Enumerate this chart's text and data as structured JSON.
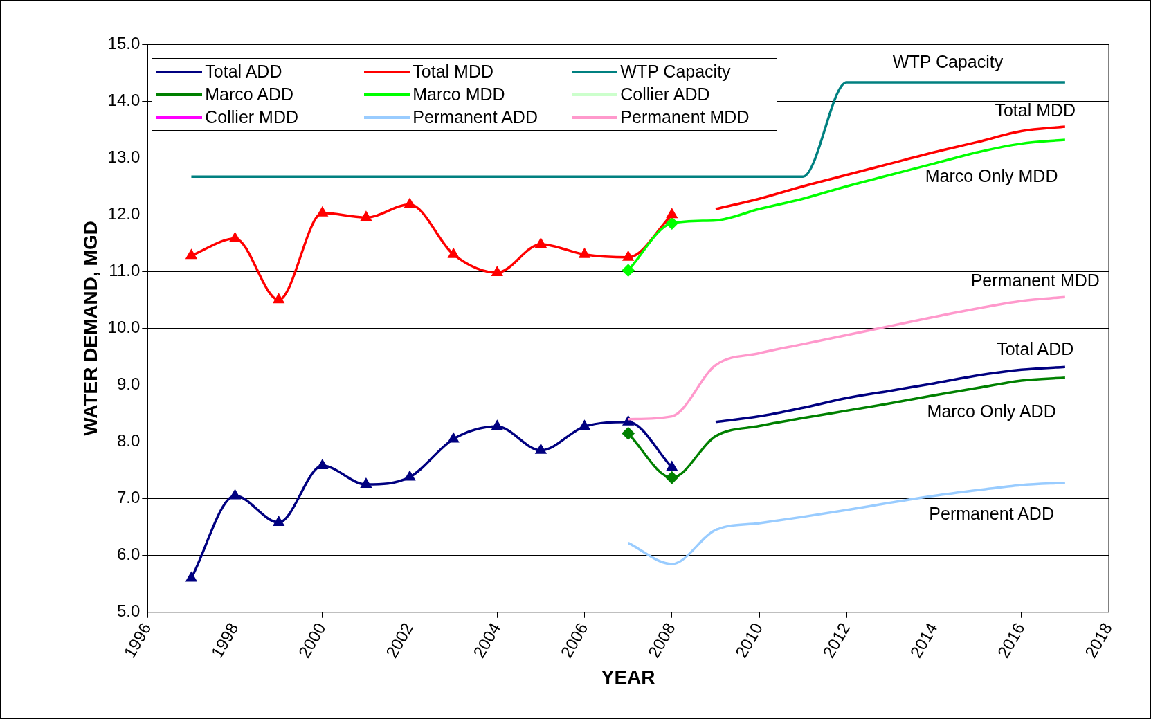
{
  "chart_data": {
    "type": "line",
    "xlabel": "YEAR",
    "ylabel": "WATER DEMAND, MGD",
    "xlim": [
      1996,
      2018
    ],
    "xticks": [
      1996,
      1998,
      2000,
      2002,
      2004,
      2006,
      2008,
      2010,
      2012,
      2014,
      2016,
      2018
    ],
    "ylim": [
      5,
      15
    ],
    "yticks": [
      {
        "value": 5,
        "label": "5.0"
      },
      {
        "value": 6,
        "label": "6.0"
      },
      {
        "value": 7,
        "label": "7.0"
      },
      {
        "value": 8,
        "label": "8.0"
      },
      {
        "value": 9,
        "label": "9.0"
      },
      {
        "value": 10,
        "label": "10.0"
      },
      {
        "value": 11,
        "label": "11.0"
      },
      {
        "value": 12,
        "label": "12.0"
      },
      {
        "value": 13,
        "label": "13.0"
      },
      {
        "value": 14,
        "label": "14.0"
      },
      {
        "value": 15,
        "label": "15.0"
      }
    ],
    "grid": "y",
    "legend": "top left",
    "marker": "none",
    "series": [
      {
        "name": "Total ADD",
        "color": "#000080",
        "x": [
          2009,
          2010,
          2011,
          2012,
          2013,
          2014,
          2015,
          2016,
          2017
        ],
        "values": [
          8.35,
          8.45,
          8.6,
          8.77,
          8.9,
          9.03,
          9.17,
          9.27,
          9.32
        ]
      },
      {
        "name": "Total MDD",
        "color": "#ff0000",
        "x": [
          2009,
          2010,
          2011,
          2012,
          2013,
          2014,
          2015,
          2016,
          2017
        ],
        "values": [
          12.1,
          12.28,
          12.5,
          12.7,
          12.9,
          13.1,
          13.28,
          13.47,
          13.55
        ]
      },
      {
        "name": "WTP Capacity",
        "color": "#008080",
        "x": [
          1997,
          2011,
          2012,
          2017
        ],
        "values": [
          12.67,
          12.67,
          14.33,
          14.33
        ]
      },
      {
        "name": "Marco ADD",
        "color": "#008000",
        "x": [
          2007,
          2008,
          2009,
          2010,
          2011,
          2012,
          2013,
          2014,
          2015,
          2016,
          2017
        ],
        "values": [
          8.15,
          7.37,
          8.1,
          8.28,
          8.42,
          8.55,
          8.68,
          8.82,
          8.95,
          9.08,
          9.13
        ]
      },
      {
        "name": "Marco MDD",
        "color": "#00ff00",
        "x": [
          2007,
          2008,
          2009,
          2010,
          2011,
          2012,
          2013,
          2014,
          2015,
          2016,
          2017
        ],
        "values": [
          11.02,
          11.85,
          11.9,
          12.1,
          12.28,
          12.5,
          12.7,
          12.9,
          13.1,
          13.25,
          13.32
        ]
      },
      {
        "name": "Collier ADD",
        "color": "#ccffcc"
      },
      {
        "name": "Collier MDD",
        "color": "#ff00ff"
      },
      {
        "name": "Permanent ADD",
        "color": "#99ccff",
        "x": [
          2007,
          2008,
          2009,
          2010,
          2011,
          2012,
          2013,
          2014,
          2015,
          2016,
          2017
        ],
        "values": [
          6.22,
          5.85,
          6.45,
          6.57,
          6.68,
          6.8,
          6.93,
          7.05,
          7.15,
          7.24,
          7.28
        ]
      },
      {
        "name": "Permanent MDD",
        "color": "#ff99cc",
        "x": [
          2007,
          2008,
          2009,
          2010,
          2011,
          2012,
          2013,
          2014,
          2015,
          2016,
          2017
        ],
        "values": [
          8.4,
          8.45,
          9.35,
          9.56,
          9.72,
          9.88,
          10.04,
          10.2,
          10.35,
          10.48,
          10.55
        ]
      },
      {
        "color": "#000080",
        "marker": "triangle",
        "x": [
          1997,
          1998,
          1999,
          2000,
          2001,
          2002,
          2003,
          2004,
          2005,
          2006,
          2007,
          2008
        ],
        "values": [
          5.6,
          7.05,
          6.58,
          7.58,
          7.25,
          7.38,
          8.05,
          8.27,
          7.85,
          8.27,
          8.35,
          7.55
        ]
      },
      {
        "color": "#ff0000",
        "marker": "triangle",
        "x": [
          1997,
          1998,
          1999,
          2000,
          2001,
          2002,
          2003,
          2004,
          2005,
          2006,
          2007,
          2008
        ],
        "values": [
          11.28,
          11.58,
          10.5,
          12.03,
          11.95,
          12.18,
          11.3,
          10.98,
          11.48,
          11.3,
          11.25,
          12.0
        ]
      },
      {
        "type": "scatter",
        "color": "#008000",
        "marker": "diamond",
        "x": [
          2007,
          2008
        ],
        "values": [
          8.15,
          7.37
        ]
      },
      {
        "type": "scatter",
        "color": "#00ff00",
        "marker": "diamond",
        "x": [
          2007,
          2008
        ],
        "values": [
          11.02,
          11.85
        ]
      }
    ],
    "annotations": [
      {
        "text": "WTP Capacity",
        "x": 2014,
        "y": 14.33
      },
      {
        "text": "Total MDD",
        "x": 2016,
        "y": 13.47
      },
      {
        "text": "Marco Only MDD",
        "x": 2015,
        "y": 13.1
      },
      {
        "text": "Permanent MDD",
        "x": 2016,
        "y": 10.48
      },
      {
        "text": "Total ADD",
        "x": 2016,
        "y": 9.27
      },
      {
        "text": "Marco Only ADD",
        "x": 2015,
        "y": 8.95
      },
      {
        "text": "Permanent ADD",
        "x": 2015,
        "y": 7.15
      }
    ]
  }
}
